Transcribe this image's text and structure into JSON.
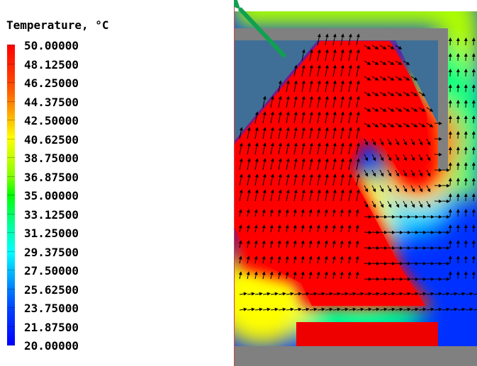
{
  "legend": {
    "title": "Temperature, °C",
    "labels": [
      "50.00000",
      "48.12500",
      "46.25000",
      "44.37500",
      "42.50000",
      "40.62500",
      "38.75000",
      "36.87500",
      "35.00000",
      "33.12500",
      "31.25000",
      "29.37500",
      "27.50000",
      "25.62500",
      "23.75000",
      "21.87500",
      "20.00000"
    ],
    "colors": [
      "#ff0000",
      "#ff4000",
      "#ff7f00",
      "#ffbf00",
      "#ffff00",
      "#bfff00",
      "#7fff00",
      "#00ff00",
      "#00ff7f",
      "#00ffbf",
      "#00ffff",
      "#00bfff",
      "#007fff",
      "#0040ff",
      "#0000ff"
    ]
  },
  "field": {
    "hot_color": "#ff0000",
    "cold_color": "#0000ff",
    "wall_color": "#808080",
    "cavity_color": "#3f6f96",
    "arrow_color": "#000000",
    "pointer_color": "#10a050"
  }
}
